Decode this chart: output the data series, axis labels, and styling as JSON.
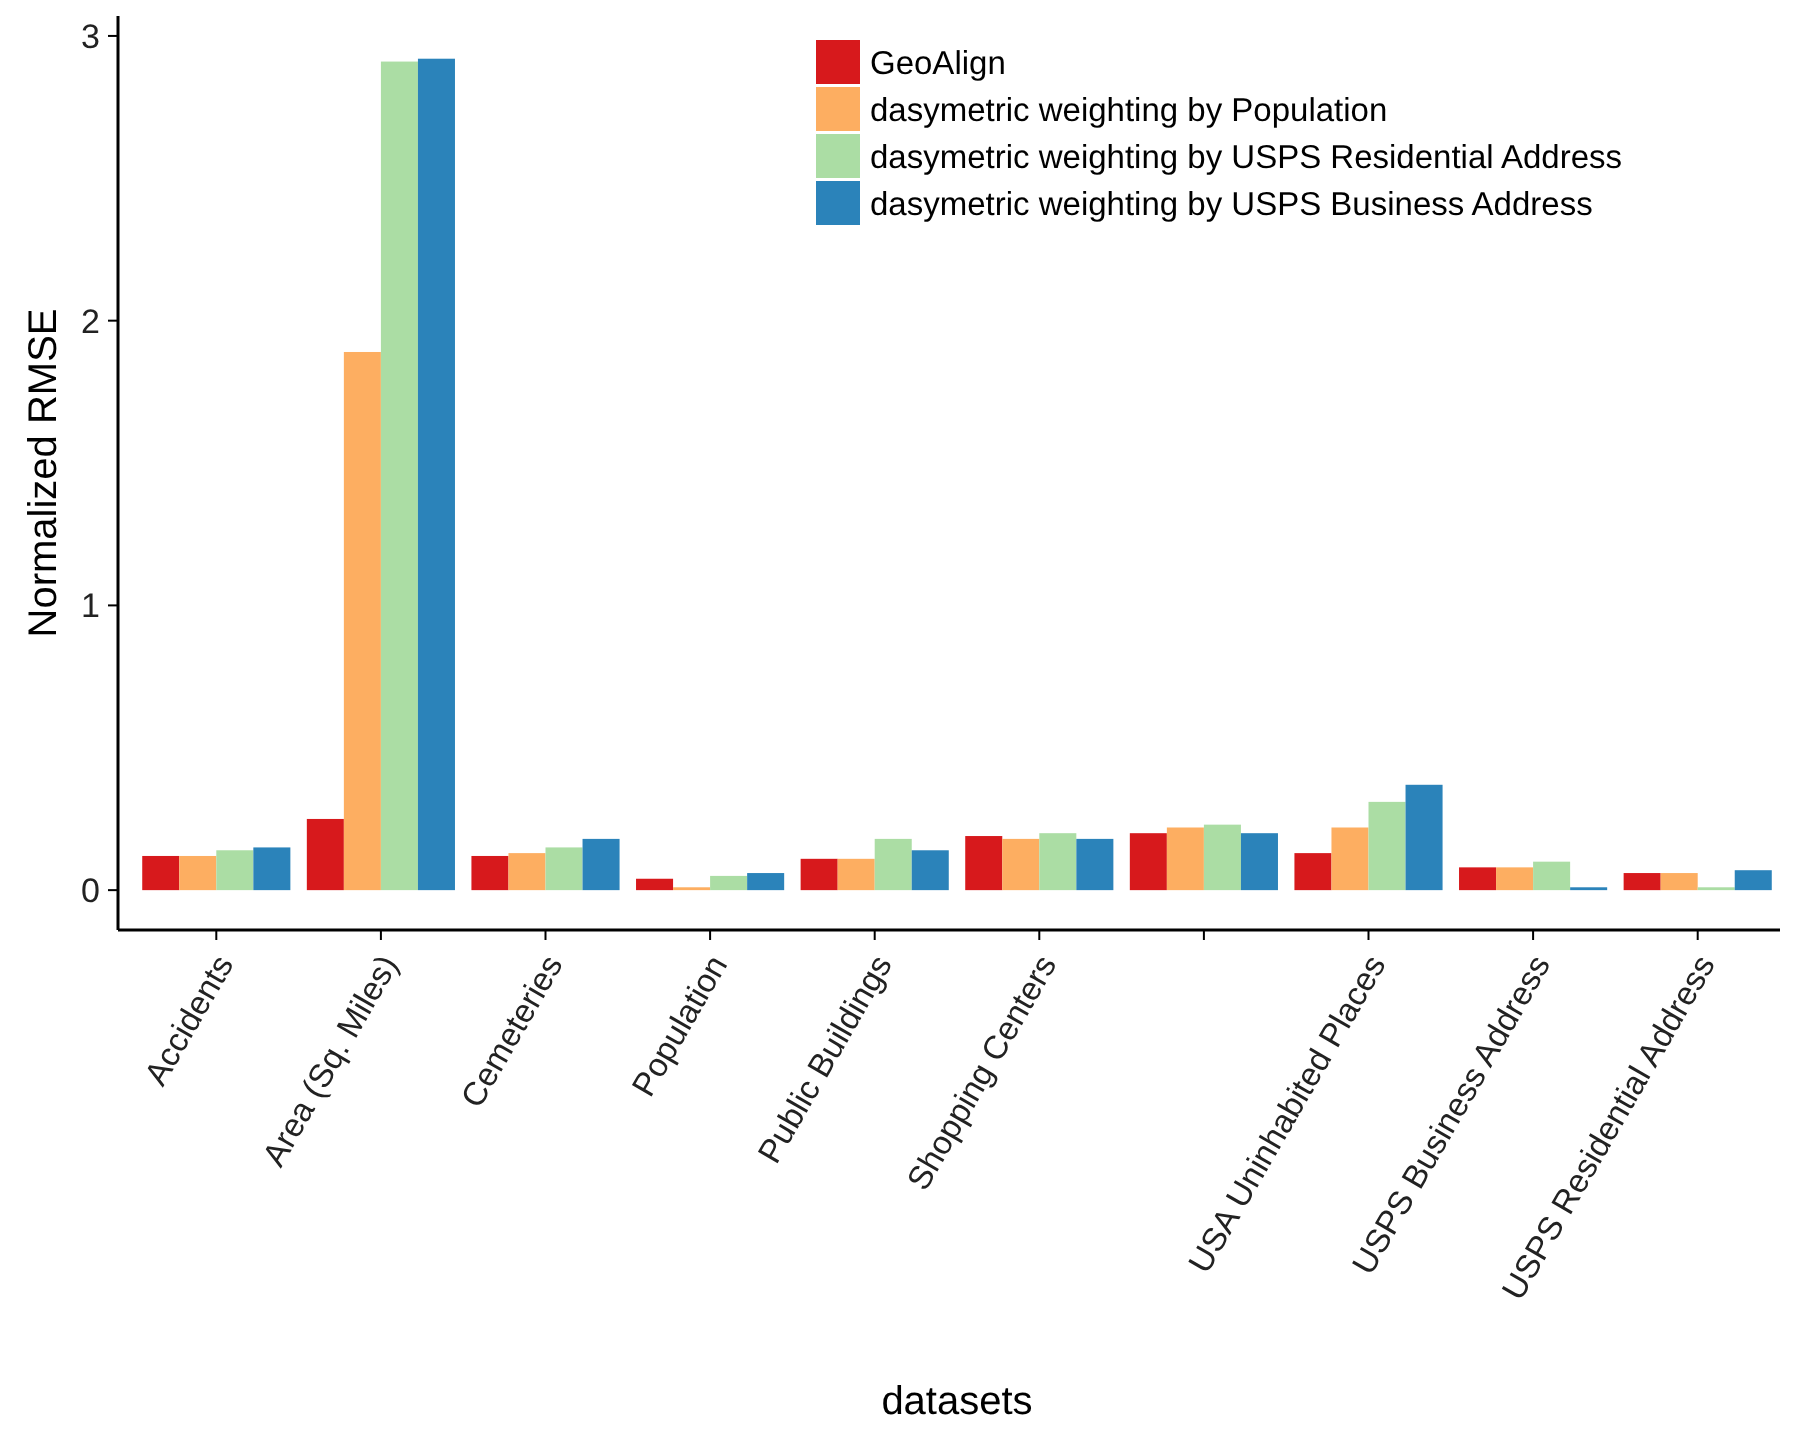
{
  "chart_data": {
    "type": "bar",
    "xlabel": "datasets",
    "ylabel": "Normalized RMSE",
    "categories": [
      "Accidents",
      "Area (Sq. Miles)",
      "Cemeteries",
      "Population",
      "Public Buildings",
      "Shopping Centers",
      null,
      "USA Uninhabited Places",
      "USPS Business Address",
      "USPS Residential Address"
    ],
    "series": [
      {
        "name": "GeoAlign",
        "color": "#d7191c",
        "values": [
          0.12,
          0.25,
          0.12,
          0.04,
          0.11,
          0.19,
          0.2,
          0.13,
          0.08,
          0.06
        ]
      },
      {
        "name": "dasymetric weighting by Population",
        "color": "#fdae61",
        "values": [
          0.12,
          1.89,
          0.13,
          0.01,
          0.11,
          0.18,
          0.22,
          0.22,
          0.08,
          0.06
        ]
      },
      {
        "name": "dasymetric weighting by USPS Residential Address",
        "color": "#abdda4",
        "values": [
          0.14,
          2.91,
          0.15,
          0.05,
          0.18,
          0.2,
          0.23,
          0.31,
          0.1,
          0.01
        ]
      },
      {
        "name": "dasymetric weighting by USPS Business Address",
        "color": "#2b83ba",
        "values": [
          0.15,
          2.92,
          0.18,
          0.06,
          0.14,
          0.18,
          0.2,
          0.37,
          0.01,
          0.07
        ]
      }
    ],
    "ylim": [
      -0.14,
      3.07
    ],
    "yticks": [
      0,
      1,
      2,
      3
    ],
    "grid": false,
    "legend": "top right"
  }
}
